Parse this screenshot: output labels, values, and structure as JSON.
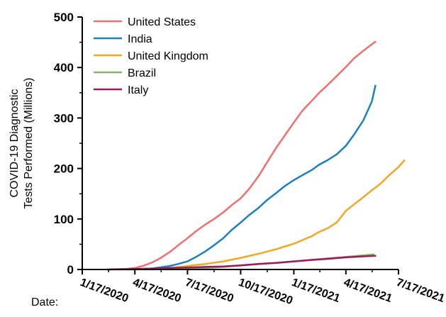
{
  "chart_data": {
    "type": "line",
    "xlabel_prefix": "Date:",
    "ylabel_lines": [
      "COVID-19 Diagnostic",
      "Tests Performed (Millions)"
    ],
    "ylim": [
      0,
      500
    ],
    "yticks": [
      0,
      100,
      200,
      300,
      400,
      500
    ],
    "xlim": [
      "2020-01-17",
      "2021-07-17"
    ],
    "xticks": [
      "1/17/2020",
      "4/17/2020",
      "7/17/2020",
      "10/17/2020",
      "1/17/2021",
      "4/17/2021",
      "7/17/2021"
    ],
    "xtick_dates": [
      "2020-01-17",
      "2020-04-17",
      "2020-07-17",
      "2020-10-17",
      "2021-01-17",
      "2021-04-17",
      "2021-07-17"
    ],
    "legend_position": "top-left",
    "series": [
      {
        "name": "United States",
        "color": "#f07070",
        "points": [
          [
            "2020-03-01",
            0
          ],
          [
            "2020-04-01",
            1
          ],
          [
            "2020-04-17",
            3
          ],
          [
            "2020-05-01",
            7
          ],
          [
            "2020-05-17",
            14
          ],
          [
            "2020-06-01",
            23
          ],
          [
            "2020-06-17",
            35
          ],
          [
            "2020-07-01",
            48
          ],
          [
            "2020-07-17",
            62
          ],
          [
            "2020-08-01",
            76
          ],
          [
            "2020-08-17",
            89
          ],
          [
            "2020-09-01",
            100
          ],
          [
            "2020-09-17",
            113
          ],
          [
            "2020-10-01",
            127
          ],
          [
            "2020-10-17",
            141
          ],
          [
            "2020-11-01",
            160
          ],
          [
            "2020-11-17",
            185
          ],
          [
            "2020-12-01",
            211
          ],
          [
            "2020-12-17",
            240
          ],
          [
            "2021-01-01",
            265
          ],
          [
            "2021-01-17",
            291
          ],
          [
            "2021-02-01",
            315
          ],
          [
            "2021-02-17",
            334
          ],
          [
            "2021-03-01",
            349
          ],
          [
            "2021-03-17",
            366
          ],
          [
            "2021-04-01",
            383
          ],
          [
            "2021-04-17",
            401
          ],
          [
            "2021-05-01",
            418
          ],
          [
            "2021-05-17",
            433
          ],
          [
            "2021-06-01",
            446
          ],
          [
            "2021-06-07",
            451
          ]
        ]
      },
      {
        "name": "India",
        "color": "#1a80c0",
        "points": [
          [
            "2020-03-15",
            0
          ],
          [
            "2020-04-17",
            0.5
          ],
          [
            "2020-05-17",
            2
          ],
          [
            "2020-06-17",
            7
          ],
          [
            "2020-07-01",
            11
          ],
          [
            "2020-07-17",
            16
          ],
          [
            "2020-08-01",
            25
          ],
          [
            "2020-08-17",
            36
          ],
          [
            "2020-09-01",
            48
          ],
          [
            "2020-09-17",
            62
          ],
          [
            "2020-10-01",
            78
          ],
          [
            "2020-10-17",
            93
          ],
          [
            "2020-11-01",
            108
          ],
          [
            "2020-11-17",
            122
          ],
          [
            "2020-12-01",
            137
          ],
          [
            "2020-12-17",
            151
          ],
          [
            "2021-01-01",
            165
          ],
          [
            "2021-01-17",
            177
          ],
          [
            "2021-02-01",
            187
          ],
          [
            "2021-02-17",
            197
          ],
          [
            "2021-03-01",
            207
          ],
          [
            "2021-03-17",
            217
          ],
          [
            "2021-04-01",
            228
          ],
          [
            "2021-04-17",
            245
          ],
          [
            "2021-05-01",
            267
          ],
          [
            "2021-05-17",
            295
          ],
          [
            "2021-06-01",
            333
          ],
          [
            "2021-06-07",
            364
          ]
        ]
      },
      {
        "name": "United Kingdom",
        "color": "#f5a623",
        "points": [
          [
            "2020-04-01",
            0
          ],
          [
            "2020-05-17",
            1
          ],
          [
            "2020-06-17",
            3
          ],
          [
            "2020-07-17",
            7
          ],
          [
            "2020-08-17",
            11
          ],
          [
            "2020-09-17",
            16
          ],
          [
            "2020-10-17",
            23
          ],
          [
            "2020-11-17",
            31
          ],
          [
            "2020-12-17",
            40
          ],
          [
            "2021-01-17",
            51
          ],
          [
            "2021-02-17",
            66
          ],
          [
            "2021-03-01",
            74
          ],
          [
            "2021-03-17",
            82
          ],
          [
            "2021-04-01",
            93
          ],
          [
            "2021-04-17",
            116
          ],
          [
            "2021-05-01",
            129
          ],
          [
            "2021-05-17",
            143
          ],
          [
            "2021-06-01",
            157
          ],
          [
            "2021-06-17",
            171
          ],
          [
            "2021-07-01",
            187
          ],
          [
            "2021-07-17",
            203
          ],
          [
            "2021-07-27",
            216
          ]
        ]
      },
      {
        "name": "Brazil",
        "color": "#8db466",
        "points": [
          [
            "2020-04-01",
            0
          ],
          [
            "2020-05-17",
            0.5
          ],
          [
            "2020-06-17",
            1
          ],
          [
            "2020-07-17",
            2
          ],
          [
            "2020-08-17",
            3
          ],
          [
            "2020-09-17",
            5
          ],
          [
            "2020-10-17",
            8
          ],
          [
            "2020-11-17",
            11
          ],
          [
            "2020-12-17",
            13
          ],
          [
            "2021-01-17",
            16
          ],
          [
            "2021-02-17",
            19
          ],
          [
            "2021-03-17",
            22
          ],
          [
            "2021-04-17",
            25
          ],
          [
            "2021-05-17",
            28
          ],
          [
            "2021-06-04",
            30
          ]
        ]
      },
      {
        "name": "Italy",
        "color": "#9e1a5c",
        "points": [
          [
            "2020-03-01",
            0
          ],
          [
            "2020-04-17",
            1
          ],
          [
            "2020-05-17",
            2
          ],
          [
            "2020-06-17",
            3
          ],
          [
            "2020-07-17",
            4
          ],
          [
            "2020-08-17",
            5
          ],
          [
            "2020-09-17",
            6
          ],
          [
            "2020-10-17",
            8
          ],
          [
            "2020-11-17",
            11
          ],
          [
            "2020-12-17",
            13
          ],
          [
            "2021-01-17",
            16
          ],
          [
            "2021-02-17",
            19
          ],
          [
            "2021-03-17",
            21
          ],
          [
            "2021-04-17",
            24
          ],
          [
            "2021-05-17",
            26
          ],
          [
            "2021-06-07",
            27
          ]
        ]
      }
    ]
  }
}
